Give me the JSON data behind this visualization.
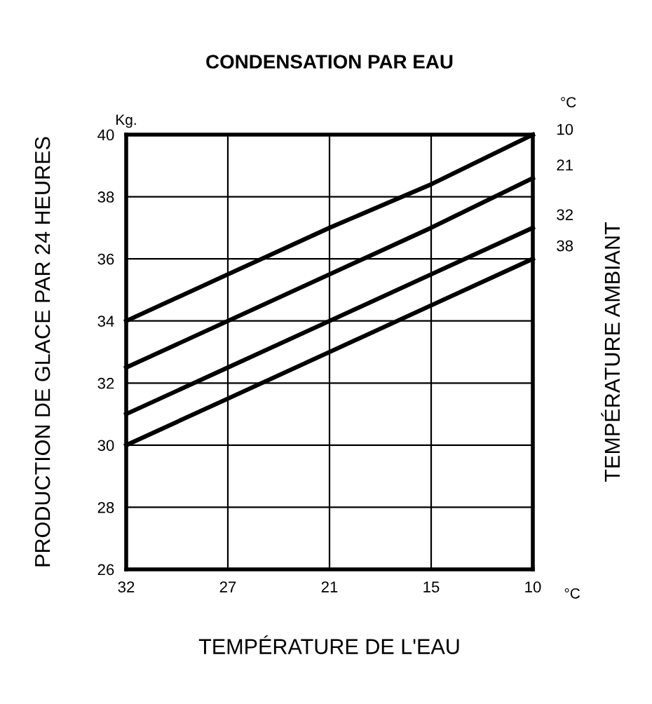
{
  "chart_data": {
    "type": "line",
    "title": "CONDENSATION PAR EAU",
    "xlabel": "TEMPÉRATURE DE L'EAU",
    "ylabel": "PRODUCTION DE GLACE PAR 24 HEURES",
    "y2label": "TEMPÉRATURE AMBIANT",
    "categories": [
      "32",
      "27",
      "21",
      "15",
      "10"
    ],
    "series": [
      {
        "name": "10",
        "color": "#000000",
        "values": [
          34,
          35.5,
          37,
          38.4,
          40
        ]
      },
      {
        "name": "21",
        "color": "#000000",
        "values": [
          32.5,
          34,
          35.5,
          37,
          38.6
        ]
      },
      {
        "name": "32",
        "color": "#000000",
        "values": [
          31,
          32.5,
          34,
          35.5,
          37
        ]
      },
      {
        "name": "38",
        "color": "#000000",
        "values": [
          30,
          31.5,
          33,
          34.5,
          36
        ]
      }
    ],
    "ylim": [
      26,
      40
    ],
    "yticks": [
      26,
      28,
      30,
      32,
      34,
      36,
      38,
      40
    ],
    "annotations": [
      "Kg.",
      "°C",
      "°C"
    ],
    "grid": true,
    "legend": false,
    "marker": "none",
    "line_style": "solid"
  }
}
